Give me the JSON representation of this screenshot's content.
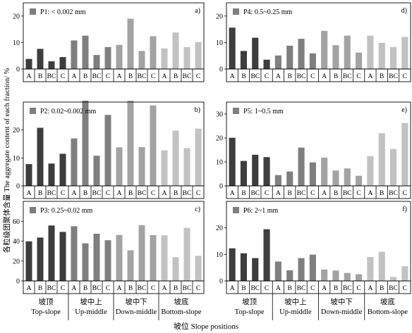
{
  "figure": {
    "ylabel_cn": "各粒级团聚体含量",
    "ylabel_en": "The aggregate content of each fraction/ %",
    "xlabel_cn": "坡位",
    "xlabel_en": "Slope positions",
    "groups": [
      {
        "cn": "坡顶",
        "en": "Top-slope"
      },
      {
        "cn": "坡中上",
        "en": "Up-middle"
      },
      {
        "cn": "坡中下",
        "en": "Down-middle"
      },
      {
        "cn": "坡底",
        "en": "Bottom-slope"
      }
    ],
    "layer_labels": [
      "A",
      "B",
      "BC",
      "C"
    ],
    "group_colors": [
      "#3d3d3d",
      "#7f7f7f",
      "#a3a3a3",
      "#c2c2c2"
    ]
  },
  "chart_data": [
    {
      "type": "bar",
      "panel": "a)",
      "legend": "P1: < 0.002 mm",
      "ylim": [
        0,
        25
      ],
      "yticks": [
        0,
        10,
        20
      ],
      "categories": [
        "A",
        "B",
        "BC",
        "C",
        "A",
        "B",
        "BC",
        "C",
        "A",
        "B",
        "BC",
        "C",
        "A",
        "B",
        "BC",
        "C"
      ],
      "values": [
        3.8,
        7.6,
        2.9,
        4.5,
        10.8,
        12.6,
        5.3,
        8.3,
        9.1,
        19.0,
        6.8,
        12.4,
        7.8,
        13.8,
        8.3,
        10.2
      ]
    },
    {
      "type": "bar",
      "panel": "b)",
      "legend": "P2: 0.02~0.002 mm",
      "ylim": [
        0,
        30
      ],
      "yticks": [
        0,
        10,
        20
      ],
      "categories": [
        "A",
        "B",
        "BC",
        "C",
        "A",
        "B",
        "BC",
        "C",
        "A",
        "B",
        "BC",
        "C",
        "A",
        "B",
        "BC",
        "C"
      ],
      "values": [
        7.8,
        20.8,
        8.0,
        11.5,
        17.0,
        30.5,
        10.8,
        25.4,
        13.8,
        30.5,
        13.9,
        28.8,
        12.7,
        19.8,
        13.5,
        20.5
      ]
    },
    {
      "type": "bar",
      "panel": "c)",
      "legend": "P3: 0.25~0.02 mm",
      "ylim": [
        0,
        80
      ],
      "yticks": [
        0,
        20,
        40,
        60
      ],
      "categories": [
        "A",
        "B",
        "BC",
        "C",
        "A",
        "B",
        "BC",
        "C",
        "A",
        "B",
        "BC",
        "C",
        "A",
        "B",
        "BC",
        "C"
      ],
      "values": [
        39.8,
        43.6,
        55.7,
        49.3,
        55.0,
        37.8,
        47.4,
        40.9,
        46.2,
        30.8,
        56.1,
        46.1,
        45.8,
        23.8,
        53.4,
        25.3
      ]
    },
    {
      "type": "bar",
      "panel": "d)",
      "legend": "P4: 0.5~0.25 mm",
      "ylim": [
        0,
        25
      ],
      "yticks": [
        0,
        10,
        20
      ],
      "categories": [
        "A",
        "B",
        "BC",
        "C",
        "A",
        "B",
        "BC",
        "C",
        "A",
        "B",
        "BC",
        "C",
        "A",
        "B",
        "BC",
        "C"
      ],
      "values": [
        15.6,
        6.8,
        11.8,
        3.5,
        5.1,
        8.8,
        11.4,
        5.9,
        14.4,
        9.0,
        12.6,
        6.2,
        12.6,
        9.9,
        8.3,
        12.1
      ]
    },
    {
      "type": "bar",
      "panel": "e)",
      "legend": "P5: 1~0.5 mm",
      "ylim": [
        0,
        35
      ],
      "yticks": [
        0,
        10,
        20,
        30
      ],
      "categories": [
        "A",
        "B",
        "BC",
        "C",
        "A",
        "B",
        "BC",
        "C",
        "A",
        "B",
        "BC",
        "C",
        "A",
        "B",
        "BC",
        "C"
      ],
      "values": [
        20.1,
        10.4,
        13.0,
        12.0,
        4.5,
        6.0,
        16.0,
        9.8,
        11.8,
        6.4,
        7.3,
        4.2,
        12.4,
        22.0,
        15.4,
        26.3
      ]
    },
    {
      "type": "bar",
      "panel": "f)",
      "legend": "P6: 2~1 mm",
      "ylim": [
        0,
        30
      ],
      "yticks": [
        0,
        10,
        20
      ],
      "categories": [
        "A",
        "B",
        "BC",
        "C",
        "A",
        "B",
        "BC",
        "C",
        "A",
        "B",
        "BC",
        "C",
        "A",
        "B",
        "BC",
        "C"
      ],
      "values": [
        12.3,
        10.4,
        8.6,
        19.5,
        7.3,
        4.0,
        8.6,
        9.9,
        4.3,
        3.9,
        3.0,
        2.5,
        9.0,
        11.0,
        1.5,
        5.5
      ]
    }
  ]
}
